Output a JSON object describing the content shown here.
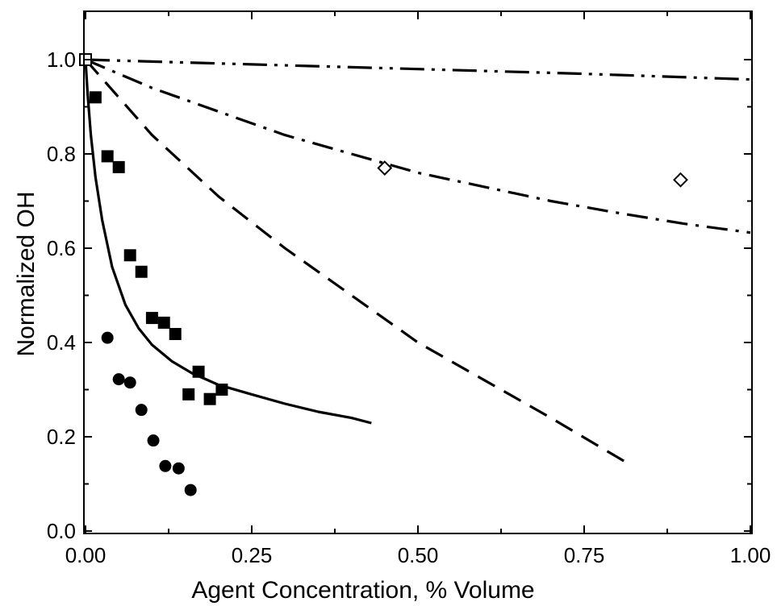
{
  "chart_data": {
    "type": "scatter",
    "title": "",
    "xlabel": "Agent Concentration, % Volume",
    "ylabel": "Normalized OH",
    "xlim": [
      0,
      1.0
    ],
    "ylim": [
      0,
      1.1
    ],
    "x_ticks": [
      0.0,
      0.25,
      0.5,
      0.75,
      1.0
    ],
    "x_tick_labels": [
      "0.00",
      "0.25",
      "0.50",
      "0.75",
      "1.00"
    ],
    "y_ticks": [
      0.0,
      0.2,
      0.4,
      0.6,
      0.8,
      1.0
    ],
    "y_tick_labels": [
      "0.0",
      "0.2",
      "0.4",
      "0.6",
      "0.8",
      "1.0"
    ],
    "grid": false,
    "legend": "none",
    "series": [
      {
        "marker": "filled-square",
        "style": "markers",
        "points": [
          [
            0.0,
            1.0
          ],
          [
            0.015,
            0.92
          ],
          [
            0.033,
            0.795
          ],
          [
            0.05,
            0.772
          ],
          [
            0.067,
            0.585
          ],
          [
            0.084,
            0.55
          ],
          [
            0.1,
            0.452
          ],
          [
            0.118,
            0.442
          ],
          [
            0.135,
            0.418
          ],
          [
            0.155,
            0.29
          ],
          [
            0.17,
            0.338
          ],
          [
            0.187,
            0.28
          ],
          [
            0.205,
            0.3
          ]
        ]
      },
      {
        "marker": "filled-circle",
        "style": "markers",
        "points": [
          [
            0.033,
            0.41
          ],
          [
            0.05,
            0.322
          ],
          [
            0.067,
            0.315
          ],
          [
            0.084,
            0.257
          ],
          [
            0.102,
            0.192
          ],
          [
            0.12,
            0.138
          ],
          [
            0.14,
            0.133
          ],
          [
            0.158,
            0.087
          ]
        ]
      },
      {
        "marker": "open-diamond",
        "style": "markers",
        "points": [
          [
            0.45,
            0.77
          ],
          [
            0.895,
            0.745
          ]
        ]
      },
      {
        "marker": "open-square",
        "style": "markers",
        "points": [
          [
            0.0,
            1.0
          ]
        ]
      },
      {
        "style": "solid",
        "points": [
          [
            0.0,
            1.0
          ],
          [
            0.003,
            0.93
          ],
          [
            0.008,
            0.84
          ],
          [
            0.015,
            0.75
          ],
          [
            0.025,
            0.66
          ],
          [
            0.04,
            0.56
          ],
          [
            0.06,
            0.48
          ],
          [
            0.08,
            0.43
          ],
          [
            0.1,
            0.395
          ],
          [
            0.13,
            0.36
          ],
          [
            0.16,
            0.335
          ],
          [
            0.2,
            0.31
          ],
          [
            0.25,
            0.29
          ],
          [
            0.3,
            0.27
          ],
          [
            0.35,
            0.253
          ],
          [
            0.4,
            0.24
          ],
          [
            0.43,
            0.229
          ]
        ]
      },
      {
        "style": "dashed",
        "points": [
          [
            0.0,
            1.0
          ],
          [
            0.05,
            0.92
          ],
          [
            0.1,
            0.84
          ],
          [
            0.2,
            0.71
          ],
          [
            0.3,
            0.6
          ],
          [
            0.4,
            0.5
          ],
          [
            0.5,
            0.4
          ],
          [
            0.6,
            0.32
          ],
          [
            0.7,
            0.24
          ],
          [
            0.82,
            0.14
          ]
        ]
      },
      {
        "style": "dash-dot",
        "points": [
          [
            0.0,
            1.0
          ],
          [
            0.1,
            0.94
          ],
          [
            0.2,
            0.89
          ],
          [
            0.3,
            0.84
          ],
          [
            0.4,
            0.8
          ],
          [
            0.5,
            0.76
          ],
          [
            0.6,
            0.73
          ],
          [
            0.7,
            0.7
          ],
          [
            0.8,
            0.675
          ],
          [
            0.9,
            0.652
          ],
          [
            1.0,
            0.633
          ]
        ]
      },
      {
        "style": "dash-dot-dot",
        "points": [
          [
            0.0,
            1.0
          ],
          [
            0.25,
            0.99
          ],
          [
            0.5,
            0.98
          ],
          [
            0.75,
            0.97
          ],
          [
            1.0,
            0.958
          ]
        ]
      }
    ]
  }
}
